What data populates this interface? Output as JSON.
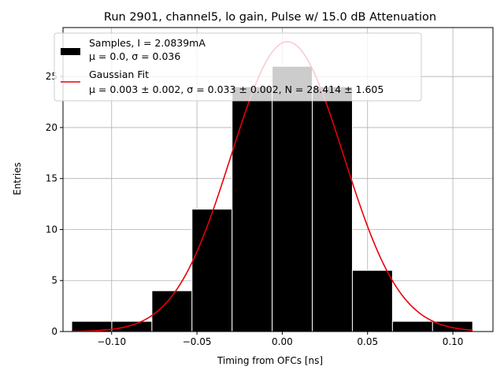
{
  "chart_data": {
    "type": "bar",
    "title": "Run 2901, channel5, lo gain, Pulse w/ 15.0 dB Attenuation",
    "xlabel": "Timing from OFCs [ns]",
    "ylabel": "Entries",
    "xlim": [
      -0.1285,
      0.1235
    ],
    "ylim": [
      0,
      29.8
    ],
    "xticks": [
      -0.1,
      -0.05,
      0.0,
      0.05,
      0.1
    ],
    "xtick_labels": [
      "−0.10",
      "−0.05",
      "0.00",
      "0.05",
      "0.10"
    ],
    "yticks": [
      0,
      5,
      10,
      15,
      20,
      25
    ],
    "ytick_labels": [
      "0",
      "5",
      "10",
      "15",
      "20",
      "25"
    ],
    "grid": true,
    "legend_position": "top-left",
    "histogram": {
      "name": "Samples, I = 2.0839mA",
      "stats_label": "μ = 0.0, σ = 0.036",
      "color": "#000000",
      "bin_edges": [
        -0.1234,
        -0.0999,
        -0.0764,
        -0.0529,
        -0.0294,
        -0.0059,
        0.0176,
        0.0411,
        0.0646,
        0.0881,
        0.1116
      ],
      "counts": [
        1,
        1,
        4,
        12,
        24,
        26,
        24,
        6,
        1,
        1
      ]
    },
    "fit": {
      "name": "Gaussian Fit",
      "stats_label": "μ = 0.003 ± 0.002, σ = 0.033 ± 0.002, N = 28.414 ± 1.605",
      "color": "#e8000b",
      "mu": 0.003,
      "sigma": 0.033,
      "N": 28.414
    }
  }
}
